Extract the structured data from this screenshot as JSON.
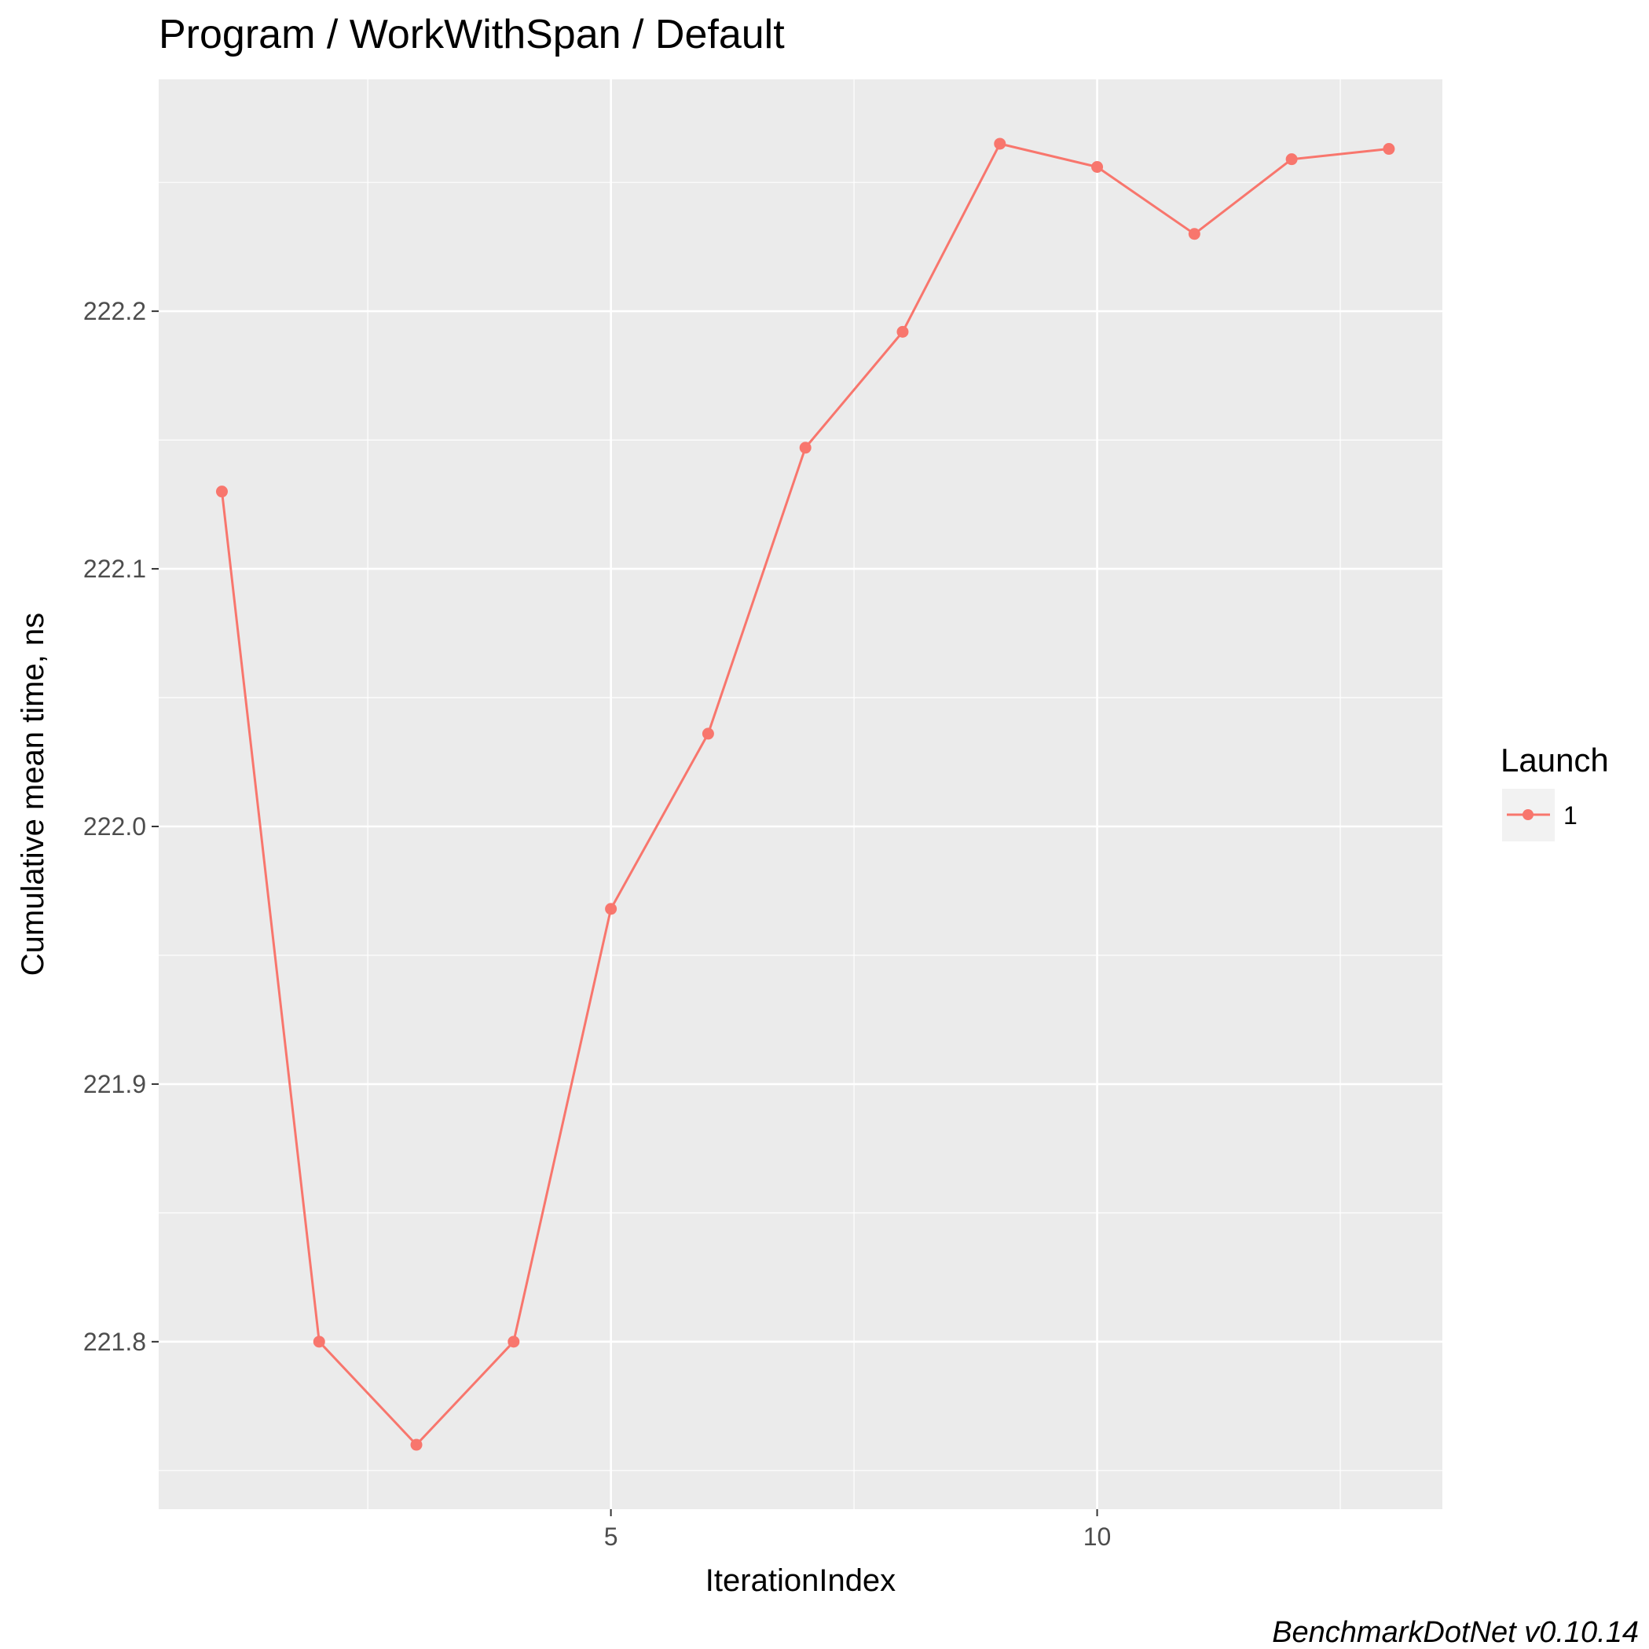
{
  "chart_data": {
    "type": "line",
    "title": "Program / WorkWithSpan / Default",
    "xlabel": "IterationIndex",
    "ylabel": "Cumulative mean time, ns",
    "caption": "BenchmarkDotNet v0.10.14",
    "x_ticks": [
      5,
      10
    ],
    "y_ticks": [
      221.8,
      221.9,
      222.0,
      222.1,
      222.2
    ],
    "y_tick_labels": [
      "221.8",
      "221.9",
      "222.0",
      "222.1",
      "222.2"
    ],
    "x_tick_labels": [
      "5",
      "10"
    ],
    "xlim": [
      0.35,
      13.55
    ],
    "ylim": [
      221.735,
      222.29
    ],
    "grid": true,
    "legend": {
      "title": "Launch",
      "position": "right"
    },
    "series": [
      {
        "name": "1",
        "color": "#F8766D",
        "x": [
          1,
          2,
          3,
          4,
          5,
          6,
          7,
          8,
          9,
          10,
          11,
          12,
          13
        ],
        "y": [
          222.13,
          221.8,
          221.76,
          221.8,
          221.968,
          222.036,
          222.147,
          222.192,
          222.265,
          222.256,
          222.23,
          222.259,
          222.263
        ]
      }
    ]
  }
}
